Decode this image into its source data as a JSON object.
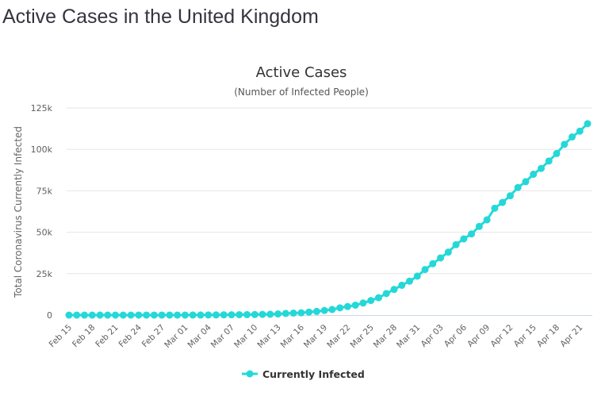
{
  "page": {
    "title": "Active Cases in the United Kingdom"
  },
  "colors": {
    "series": "#25d8d8",
    "grid": "#e6e6e6",
    "axis": "#ccd6eb"
  },
  "chart_data": {
    "type": "line",
    "title": "Active Cases",
    "subtitle": "(Number of Infected People)",
    "xlabel": "",
    "ylabel": "Total Coronavirus Currently Infected",
    "ylim": [
      0,
      125000
    ],
    "y_ticks": [
      0,
      25000,
      50000,
      75000,
      100000,
      125000
    ],
    "y_tick_labels": [
      "0",
      "25k",
      "50k",
      "75k",
      "100k",
      "125k"
    ],
    "x_tick_labels": [
      "Feb 15",
      "Feb 18",
      "Feb 21",
      "Feb 24",
      "Feb 27",
      "Mar 01",
      "Mar 04",
      "Mar 07",
      "Mar 10",
      "Mar 13",
      "Mar 16",
      "Mar 19",
      "Mar 22",
      "Mar 25",
      "Mar 28",
      "Mar 31",
      "Apr 03",
      "Apr 06",
      "Apr 09",
      "Apr 12",
      "Apr 15",
      "Apr 18",
      "Apr 21"
    ],
    "grid": true,
    "legend": {
      "position": "bottom-center",
      "entries": [
        "Currently Infected"
      ]
    },
    "series": [
      {
        "name": "Currently Infected",
        "x": [
          "Feb 15",
          "Feb 16",
          "Feb 17",
          "Feb 18",
          "Feb 19",
          "Feb 20",
          "Feb 21",
          "Feb 22",
          "Feb 23",
          "Feb 24",
          "Feb 25",
          "Feb 26",
          "Feb 27",
          "Feb 28",
          "Feb 29",
          "Mar 01",
          "Mar 02",
          "Mar 03",
          "Mar 04",
          "Mar 05",
          "Mar 06",
          "Mar 07",
          "Mar 08",
          "Mar 09",
          "Mar 10",
          "Mar 11",
          "Mar 12",
          "Mar 13",
          "Mar 14",
          "Mar 15",
          "Mar 16",
          "Mar 17",
          "Mar 18",
          "Mar 19",
          "Mar 20",
          "Mar 21",
          "Mar 22",
          "Mar 23",
          "Mar 24",
          "Mar 25",
          "Mar 26",
          "Mar 27",
          "Mar 28",
          "Mar 29",
          "Mar 30",
          "Mar 31",
          "Apr 01",
          "Apr 02",
          "Apr 03",
          "Apr 04",
          "Apr 05",
          "Apr 06",
          "Apr 07",
          "Apr 08",
          "Apr 09",
          "Apr 10",
          "Apr 11",
          "Apr 12",
          "Apr 13",
          "Apr 14",
          "Apr 15",
          "Apr 16",
          "Apr 17",
          "Apr 18",
          "Apr 19",
          "Apr 20",
          "Apr 21",
          "Apr 22"
        ],
        "values": [
          1,
          1,
          1,
          1,
          1,
          1,
          1,
          1,
          1,
          5,
          5,
          5,
          10,
          12,
          15,
          28,
          32,
          42,
          76,
          105,
          155,
          190,
          250,
          290,
          350,
          430,
          520,
          700,
          1000,
          1200,
          1400,
          1800,
          2200,
          2800,
          3400,
          4400,
          5200,
          6000,
          7300,
          8800,
          10500,
          13000,
          15500,
          18000,
          20500,
          23500,
          27500,
          31000,
          34500,
          38000,
          42500,
          46000,
          49000,
          53500,
          57500,
          64500,
          68000,
          72000,
          77000,
          80500,
          85000,
          88500,
          93000,
          97500,
          103000,
          107500,
          111000,
          115500
        ]
      }
    ]
  }
}
